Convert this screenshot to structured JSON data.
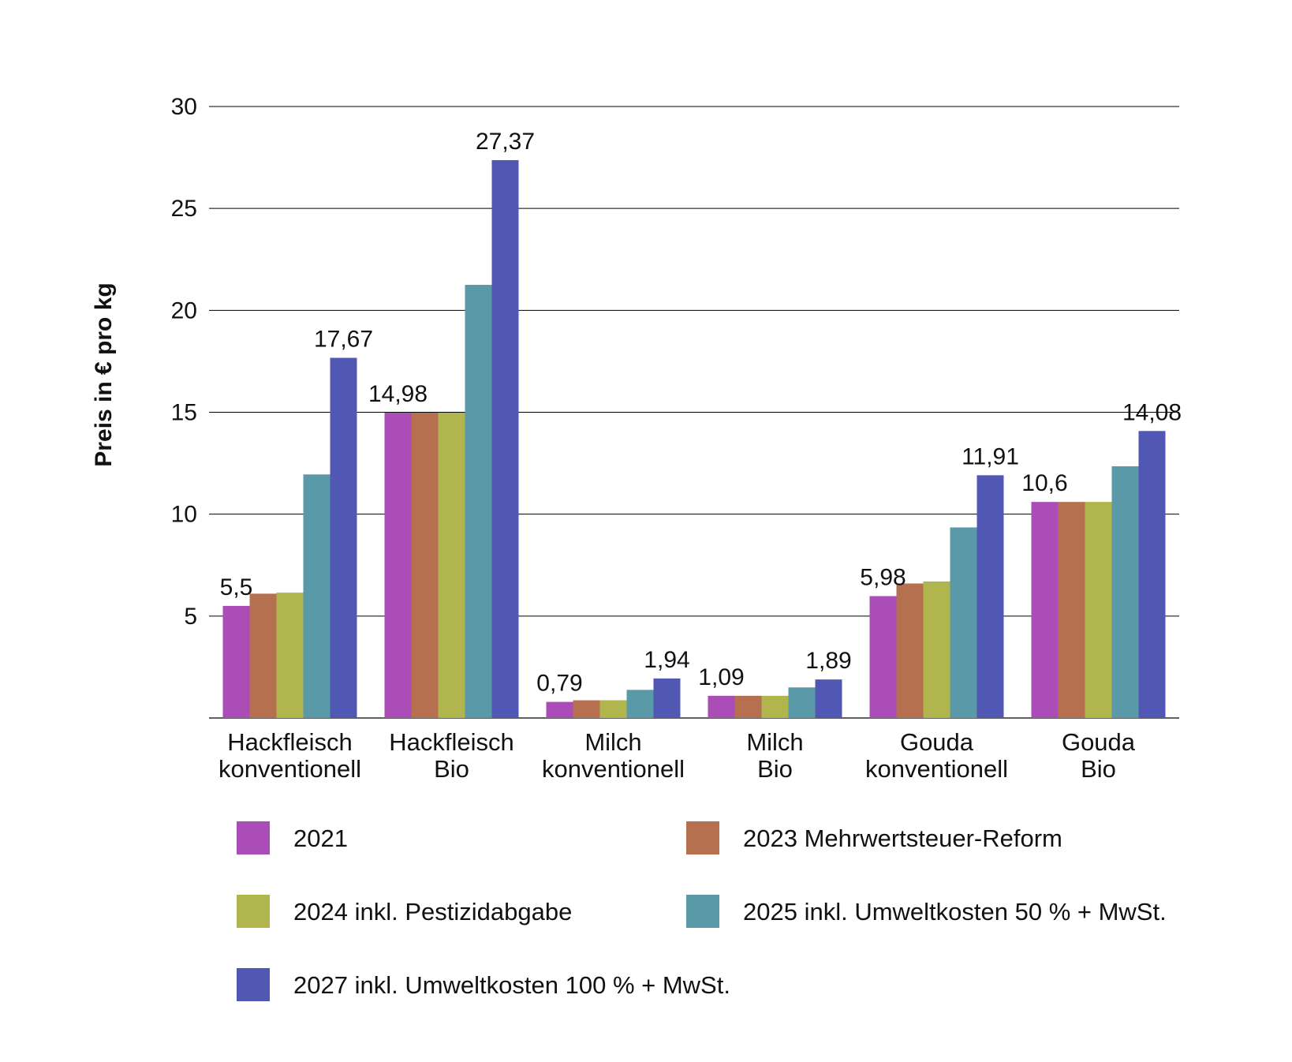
{
  "chart_data": {
    "type": "bar",
    "title": "",
    "xlabel": "",
    "ylabel": "Preis in € pro kg",
    "ylim": [
      0,
      30
    ],
    "yticks": [
      5,
      10,
      15,
      20,
      25,
      30
    ],
    "grid": true,
    "legend_position": "bottom",
    "categories": [
      [
        "Hackfleisch",
        "konventionell"
      ],
      [
        "Hackfleisch",
        "Bio"
      ],
      [
        "Milch",
        "konventionell"
      ],
      [
        "Milch",
        "Bio"
      ],
      [
        "Gouda",
        "konventionell"
      ],
      [
        "Gouda",
        "Bio"
      ]
    ],
    "series": [
      {
        "name": "2021",
        "color": "#ab4db6",
        "values": [
          5.5,
          14.98,
          0.79,
          1.09,
          5.98,
          10.6
        ]
      },
      {
        "name": "2023 Mehrwertsteuer-Reform",
        "color": "#b5714f",
        "values": [
          6.1,
          14.98,
          0.87,
          1.09,
          6.6,
          10.6
        ]
      },
      {
        "name": "2024 inkl. Pestizidabgabe",
        "color": "#b0b54e",
        "values": [
          6.15,
          14.98,
          0.87,
          1.09,
          6.7,
          10.6
        ]
      },
      {
        "name": "2025 inkl. Umweltkosten 50 % + MwSt.",
        "color": "#5a9aa8",
        "values": [
          11.95,
          21.25,
          1.38,
          1.5,
          9.35,
          12.35
        ]
      },
      {
        "name": "2027 inkl. Umweltkosten 100 % + MwSt.",
        "color": "#5058b4",
        "values": [
          17.67,
          27.37,
          1.94,
          1.89,
          11.91,
          14.08
        ]
      }
    ],
    "data_labels": [
      {
        "category": 0,
        "series": 0,
        "text": "5,5"
      },
      {
        "category": 0,
        "series": 4,
        "text": "17,67"
      },
      {
        "category": 1,
        "series": 0,
        "text": "14,98"
      },
      {
        "category": 1,
        "series": 4,
        "text": "27,37"
      },
      {
        "category": 2,
        "series": 0,
        "text": "0,79"
      },
      {
        "category": 2,
        "series": 4,
        "text": "1,94"
      },
      {
        "category": 3,
        "series": 0,
        "text": "1,09"
      },
      {
        "category": 3,
        "series": 4,
        "text": "1,89"
      },
      {
        "category": 4,
        "series": 0,
        "text": "5,98"
      },
      {
        "category": 4,
        "series": 4,
        "text": "11,91"
      },
      {
        "category": 5,
        "series": 0,
        "text": "10,6"
      },
      {
        "category": 5,
        "series": 4,
        "text": "14,08"
      }
    ]
  }
}
